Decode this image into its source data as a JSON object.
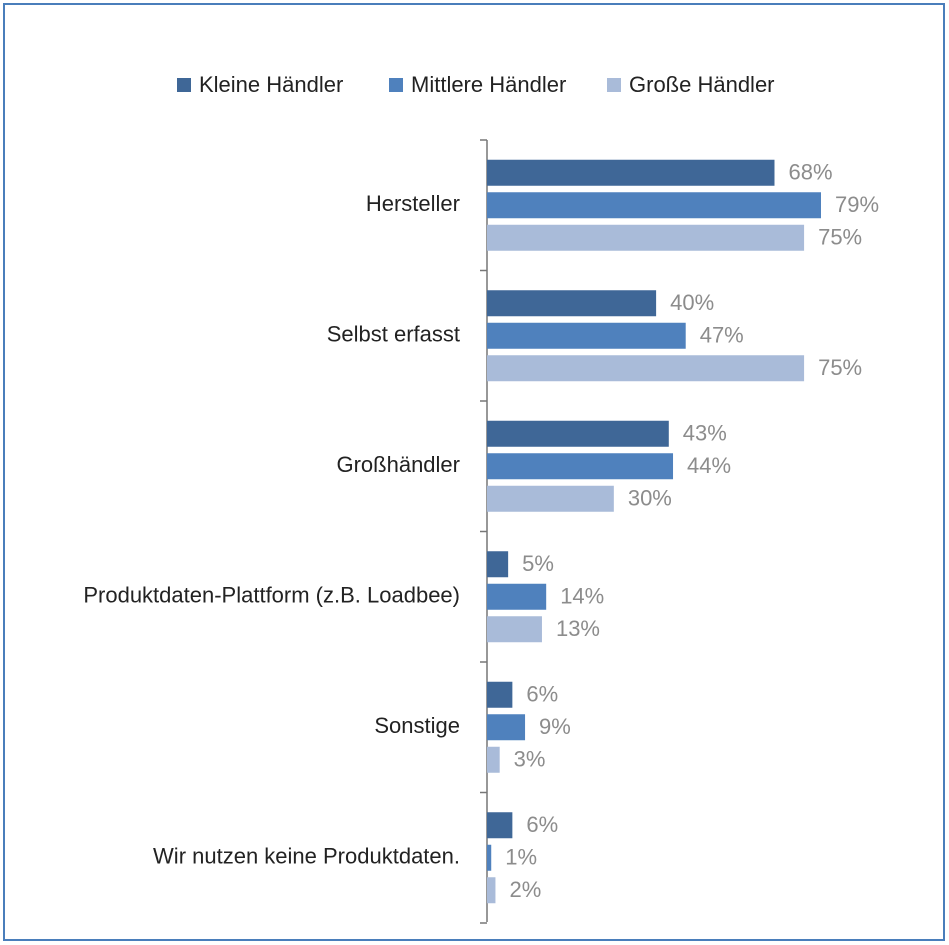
{
  "chart_data": {
    "type": "bar",
    "orientation": "horizontal",
    "categories": [
      "Hersteller",
      "Selbst erfasst",
      "Großhändler",
      "Produktdaten-Plattform (z.B. Loadbee)",
      "Sonstige",
      "Wir nutzen keine Produktdaten."
    ],
    "series": [
      {
        "name": "Kleine Händler",
        "color": "#3f6797",
        "values": [
          68,
          40,
          43,
          5,
          6,
          6
        ],
        "value_labels": [
          "68%",
          "40%",
          "43%",
          "5%",
          "6%",
          "6%"
        ]
      },
      {
        "name": "Mittlere Händler",
        "color": "#4f81bd",
        "values": [
          79,
          47,
          44,
          14,
          9,
          1
        ],
        "value_labels": [
          "79%",
          "47%",
          "44%",
          "14%",
          "9%",
          "1%"
        ]
      },
      {
        "name": "Große Händler",
        "color": "#a9bbd9",
        "values": [
          75,
          75,
          30,
          13,
          3,
          2
        ],
        "value_labels": [
          "75%",
          "75%",
          "30%",
          "13%",
          "3%",
          "2%"
        ]
      }
    ],
    "legend": "top"
  }
}
